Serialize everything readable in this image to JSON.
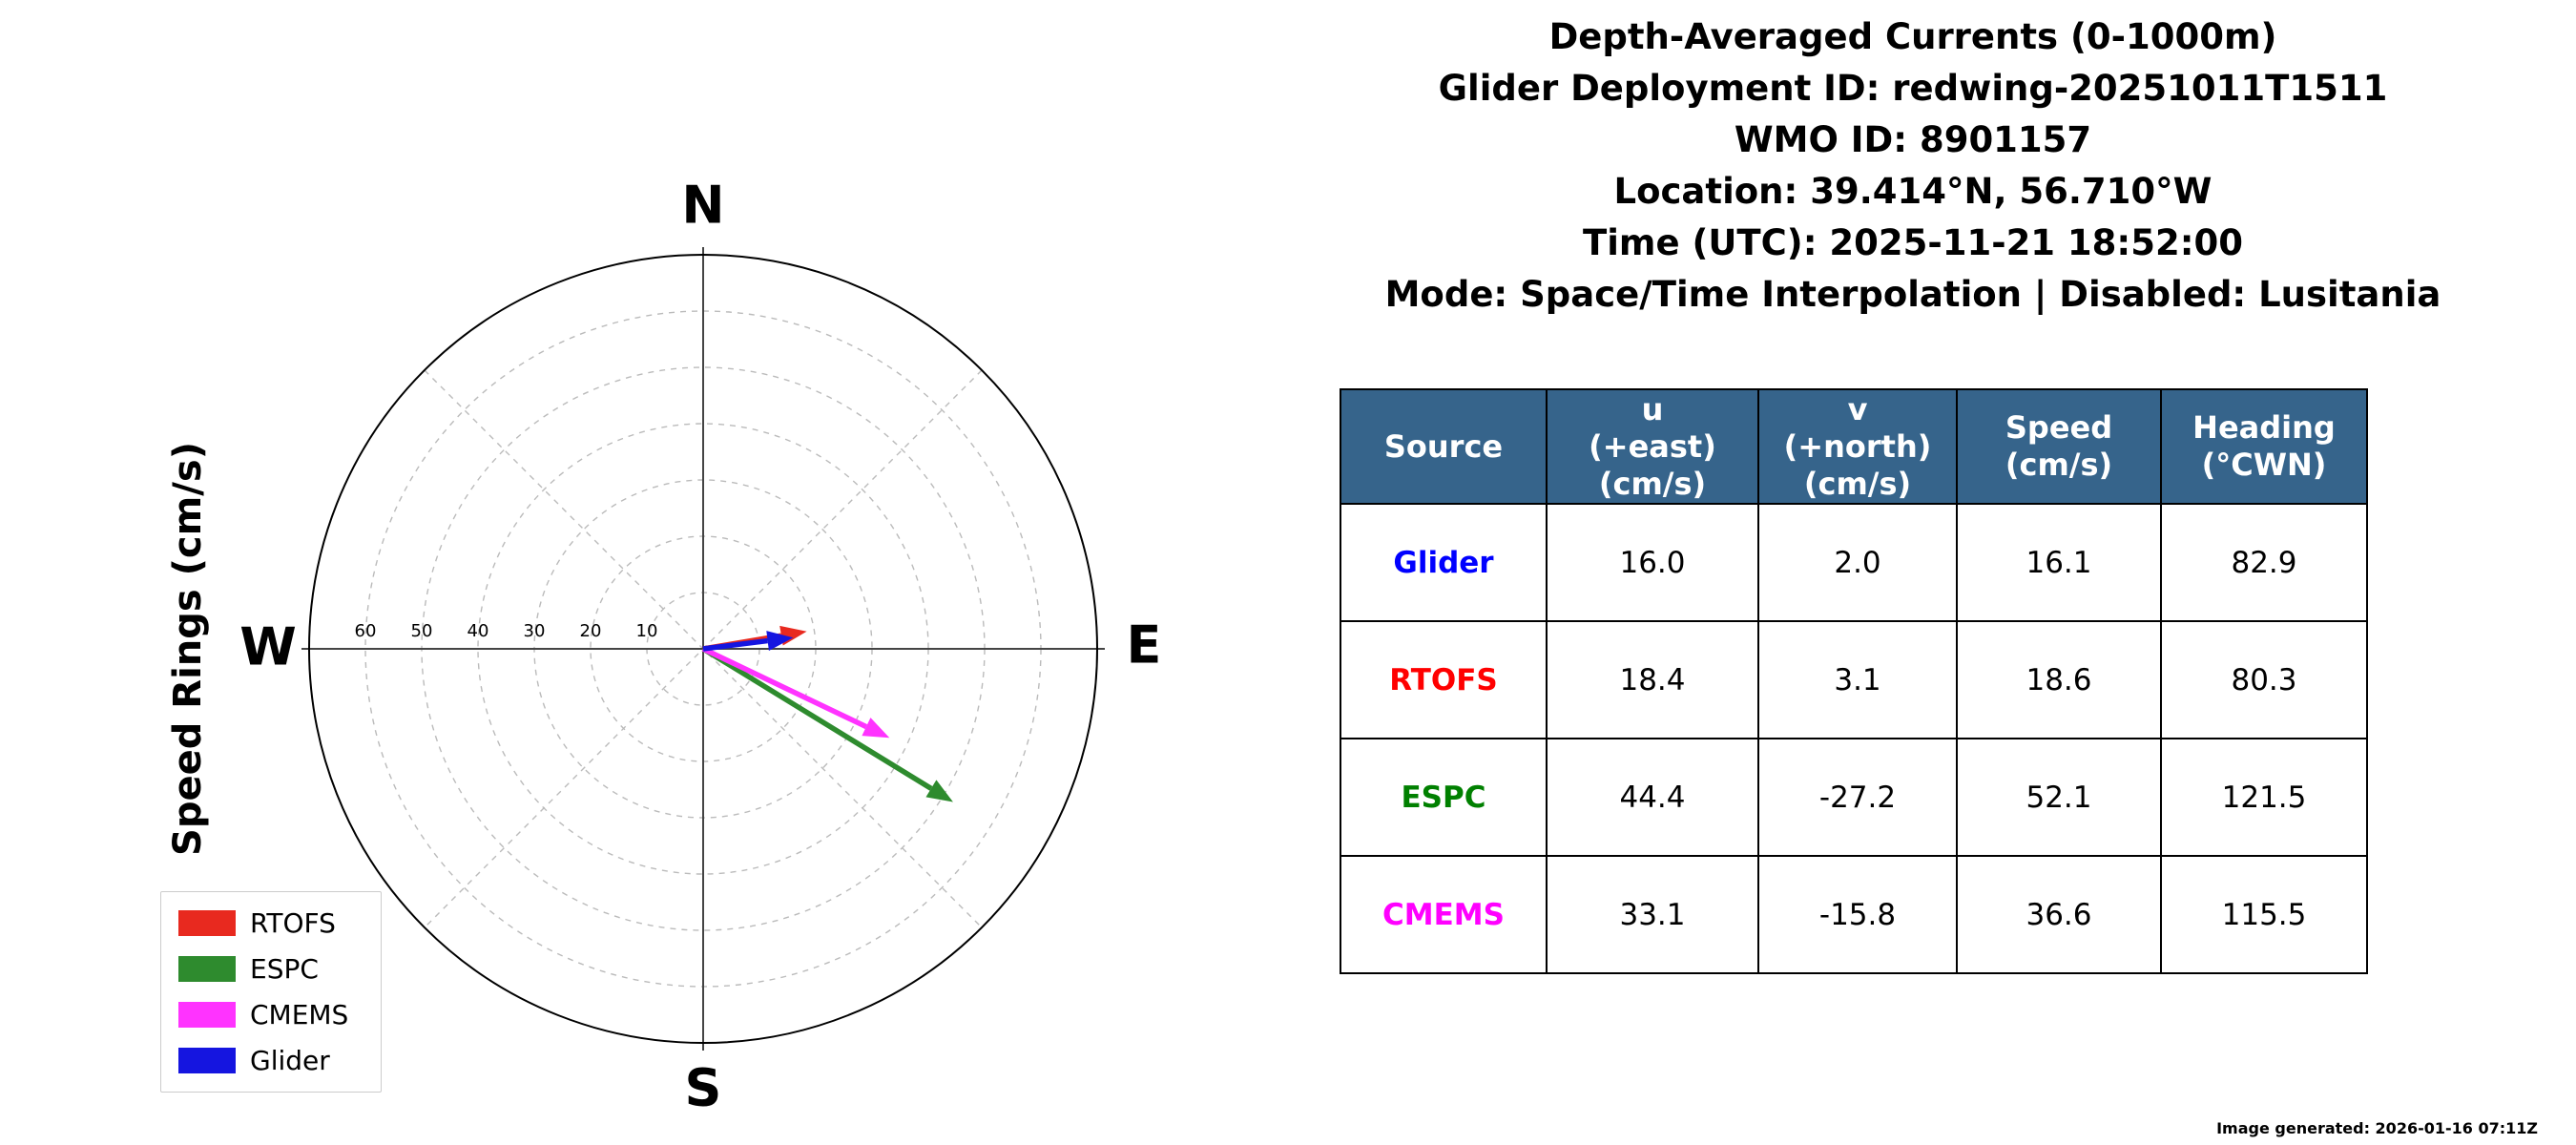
{
  "header": {
    "lines": [
      "Depth-Averaged Currents (0-1000m)",
      "Glider Deployment ID: redwing-20251011T1511",
      "WMO ID: 8901157",
      "Location: 39.414°N, 56.710°W",
      "Time (UTC): 2025-11-21 18:52:00",
      "Mode: Space/Time Interpolation | Disabled: Lusitania"
    ]
  },
  "compass": {
    "axis_label": "Speed Rings (cm/s)",
    "cardinals": {
      "north": "N",
      "east": "E",
      "south": "S",
      "west": "W"
    },
    "ring_labels": [
      "60",
      "50",
      "40",
      "30",
      "20",
      "10"
    ],
    "ring_step_cms": 10,
    "outer_ring_cms": 70,
    "grid_color": "#bbbbbb",
    "axis_line_color": "#444444"
  },
  "legend": {
    "items": [
      {
        "label": "RTOFS",
        "color": "#e8291f"
      },
      {
        "label": "ESPC",
        "color": "#2e8b2e"
      },
      {
        "label": "CMEMS",
        "color": "#ff33ff"
      },
      {
        "label": "Glider",
        "color": "#1515e0"
      }
    ]
  },
  "table": {
    "header_bg": "#36648b",
    "header_text_color": "#ffffff",
    "headers": [
      "Source",
      "u\n(+east)\n(cm/s)",
      "v\n(+north)\n(cm/s)",
      "Speed\n(cm/s)",
      "Heading\n(°CWN)"
    ],
    "rows": [
      {
        "source": "Glider",
        "color": "#0000ff",
        "values": [
          "16.0",
          "2.0",
          "16.1",
          "82.9"
        ]
      },
      {
        "source": "RTOFS",
        "color": "#ff0000",
        "values": [
          "18.4",
          "3.1",
          "18.6",
          "80.3"
        ]
      },
      {
        "source": "ESPC",
        "color": "#008000",
        "values": [
          "44.4",
          "-27.2",
          "52.1",
          "121.5"
        ]
      },
      {
        "source": "CMEMS",
        "color": "#ff00ff",
        "values": [
          "33.1",
          "-15.8",
          "36.6",
          "115.5"
        ]
      }
    ]
  },
  "footer": {
    "generated_text": "Image generated: 2026-01-16 07:11Z"
  },
  "chart_data": {
    "type": "scatter",
    "subtype": "polar_vector_quiver",
    "title": "Depth-Averaged Currents (0-1000m)",
    "axis_label": "Speed Rings (cm/s)",
    "rings_cms": [
      10,
      20,
      30,
      40,
      50,
      60
    ],
    "outer_ring_cms": 70,
    "grid": true,
    "legend_position": "lower left",
    "units": "cm/s",
    "series": [
      {
        "name": "RTOFS",
        "color": "#e8291f",
        "u_cms": 18.4,
        "v_cms": 3.1,
        "speed_cms": 18.6,
        "heading_deg_cwn": 80.3
      },
      {
        "name": "ESPC",
        "color": "#2e8b2e",
        "u_cms": 44.4,
        "v_cms": -27.2,
        "speed_cms": 52.1,
        "heading_deg_cwn": 121.5
      },
      {
        "name": "CMEMS",
        "color": "#ff33ff",
        "u_cms": 33.1,
        "v_cms": -15.8,
        "speed_cms": 36.6,
        "heading_deg_cwn": 115.5
      },
      {
        "name": "Glider",
        "color": "#1515e0",
        "u_cms": 16.0,
        "v_cms": 2.0,
        "speed_cms": 16.1,
        "heading_deg_cwn": 82.9
      }
    ]
  }
}
